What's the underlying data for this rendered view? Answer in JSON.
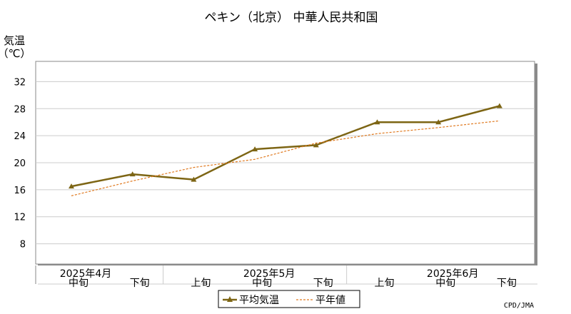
{
  "chart_data": {
    "type": "line",
    "title": "ペキン（北京） 中華人民共和国",
    "ylabel_line1": "気温",
    "ylabel_line2": "（℃）",
    "ylim": [
      5,
      35
    ],
    "yticks": [
      8,
      12,
      16,
      20,
      24,
      28,
      32
    ],
    "grid": true,
    "categories": [
      "中旬",
      "下旬",
      "上旬",
      "中旬",
      "下旬",
      "上旬",
      "中旬",
      "下旬"
    ],
    "month_labels": [
      {
        "label": "2025年4月",
        "at_index": 0
      },
      {
        "label": "2025年5月",
        "at_index": 3
      },
      {
        "label": "2025年6月",
        "at_index": 6
      }
    ],
    "series": [
      {
        "name": "平均気温",
        "style": "solid",
        "color": "#7d6514",
        "values": [
          16.5,
          18.3,
          17.5,
          22.0,
          22.6,
          26.0,
          26.0,
          28.4
        ]
      },
      {
        "name": "平年値",
        "style": "dashed",
        "color": "#e07a20",
        "values": [
          15.1,
          17.3,
          19.3,
          20.5,
          22.9,
          24.3,
          25.2,
          26.2
        ]
      }
    ],
    "legend_position": "bottom-center",
    "credit": "CPD/JMA"
  }
}
